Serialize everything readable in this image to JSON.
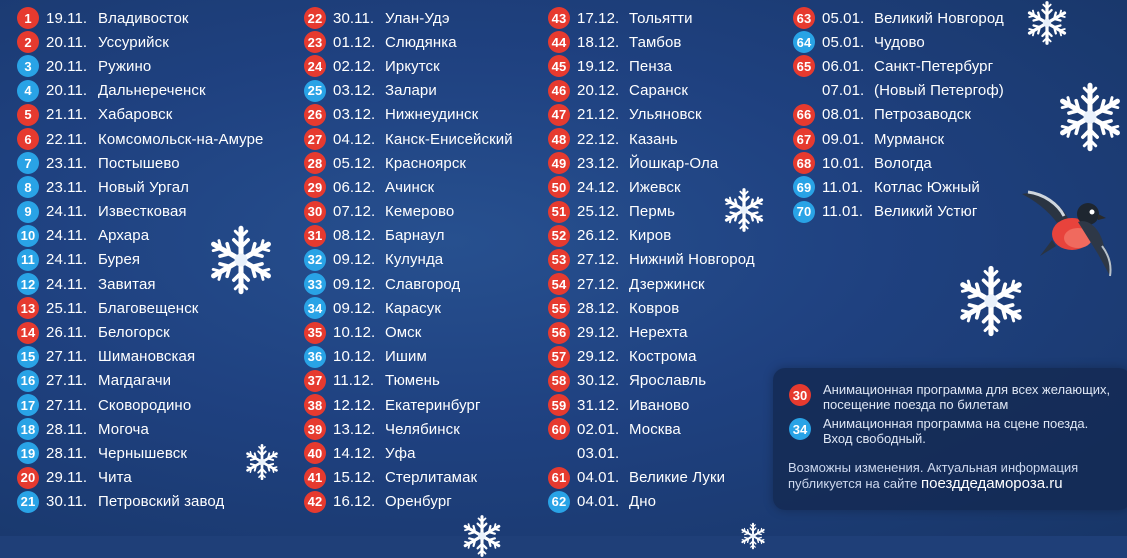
{
  "columns": [
    [
      {
        "n": "1",
        "c": "red",
        "date": "19.11.",
        "city": "Владивосток"
      },
      {
        "n": "2",
        "c": "red",
        "date": "20.11.",
        "city": "Уссурийск"
      },
      {
        "n": "3",
        "c": "blue",
        "date": "20.11.",
        "city": "Ружино"
      },
      {
        "n": "4",
        "c": "blue",
        "date": "20.11.",
        "city": "Дальнереченск"
      },
      {
        "n": "5",
        "c": "red",
        "date": "21.11.",
        "city": "Хабаровск"
      },
      {
        "n": "6",
        "c": "red",
        "date": "22.11.",
        "city": "Комсомольск-на-Амуре"
      },
      {
        "n": "7",
        "c": "blue",
        "date": "23.11.",
        "city": "Постышево"
      },
      {
        "n": "8",
        "c": "blue",
        "date": "23.11.",
        "city": "Новый Ургал"
      },
      {
        "n": "9",
        "c": "blue",
        "date": "24.11.",
        "city": "Известковая"
      },
      {
        "n": "10",
        "c": "blue",
        "date": "24.11.",
        "city": "Архара"
      },
      {
        "n": "11",
        "c": "blue",
        "date": "24.11.",
        "city": "Бурея"
      },
      {
        "n": "12",
        "c": "blue",
        "date": "24.11.",
        "city": "Завитая"
      },
      {
        "n": "13",
        "c": "red",
        "date": "25.11.",
        "city": "Благовещенск"
      },
      {
        "n": "14",
        "c": "red",
        "date": "26.11.",
        "city": "Белогорск"
      },
      {
        "n": "15",
        "c": "blue",
        "date": "27.11.",
        "city": "Шимановская"
      },
      {
        "n": "16",
        "c": "blue",
        "date": "27.11.",
        "city": "Магдагачи"
      },
      {
        "n": "17",
        "c": "blue",
        "date": "27.11.",
        "city": "Сковородино"
      },
      {
        "n": "18",
        "c": "blue",
        "date": "28.11.",
        "city": "Могоча"
      },
      {
        "n": "19",
        "c": "blue",
        "date": "28.11.",
        "city": "Чернышевск"
      },
      {
        "n": "20",
        "c": "red",
        "date": "29.11.",
        "city": "Чита"
      },
      {
        "n": "21",
        "c": "blue",
        "date": "30.11.",
        "city": "Петровский завод"
      }
    ],
    [
      {
        "n": "22",
        "c": "red",
        "date": "30.11.",
        "city": "Улан-Удэ"
      },
      {
        "n": "23",
        "c": "red",
        "date": "01.12.",
        "city": "Слюдянка"
      },
      {
        "n": "24",
        "c": "red",
        "date": "02.12.",
        "city": "Иркутск"
      },
      {
        "n": "25",
        "c": "blue",
        "date": "03.12.",
        "city": "Залари"
      },
      {
        "n": "26",
        "c": "red",
        "date": "03.12.",
        "city": "Нижнеудинск"
      },
      {
        "n": "27",
        "c": "red",
        "date": "04.12.",
        "city": "Канск-Енисейский"
      },
      {
        "n": "28",
        "c": "red",
        "date": "05.12.",
        "city": "Красноярск"
      },
      {
        "n": "29",
        "c": "red",
        "date": "06.12.",
        "city": "Ачинск"
      },
      {
        "n": "30",
        "c": "red",
        "date": "07.12.",
        "city": "Кемерово"
      },
      {
        "n": "31",
        "c": "red",
        "date": "08.12.",
        "city": "Барнаул"
      },
      {
        "n": "32",
        "c": "blue",
        "date": "09.12.",
        "city": "Кулунда"
      },
      {
        "n": "33",
        "c": "blue",
        "date": "09.12.",
        "city": "Славгород"
      },
      {
        "n": "34",
        "c": "blue",
        "date": "09.12.",
        "city": "Карасук"
      },
      {
        "n": "35",
        "c": "red",
        "date": "10.12.",
        "city": "Омск"
      },
      {
        "n": "36",
        "c": "blue",
        "date": "10.12.",
        "city": "Ишим"
      },
      {
        "n": "37",
        "c": "red",
        "date": "11.12.",
        "city": "Тюмень"
      },
      {
        "n": "38",
        "c": "red",
        "date": "12.12.",
        "city": "Екатеринбург"
      },
      {
        "n": "39",
        "c": "red",
        "date": "13.12.",
        "city": "Челябинск"
      },
      {
        "n": "40",
        "c": "red",
        "date": "14.12.",
        "city": "Уфа"
      },
      {
        "n": "41",
        "c": "red",
        "date": "15.12.",
        "city": "Стерлитамак"
      },
      {
        "n": "42",
        "c": "red",
        "date": "16.12.",
        "city": "Оренбург"
      }
    ],
    [
      {
        "n": "43",
        "c": "red",
        "date": "17.12.",
        "city": "Тольятти"
      },
      {
        "n": "44",
        "c": "red",
        "date": "18.12.",
        "city": "Тамбов"
      },
      {
        "n": "45",
        "c": "red",
        "date": "19.12.",
        "city": "Пенза"
      },
      {
        "n": "46",
        "c": "red",
        "date": "20.12.",
        "city": "Саранск"
      },
      {
        "n": "47",
        "c": "red",
        "date": "21.12.",
        "city": "Ульяновск"
      },
      {
        "n": "48",
        "c": "red",
        "date": "22.12.",
        "city": "Казань"
      },
      {
        "n": "49",
        "c": "red",
        "date": "23.12.",
        "city": "Йошкар-Ола"
      },
      {
        "n": "50",
        "c": "red",
        "date": "24.12.",
        "city": "Ижевск"
      },
      {
        "n": "51",
        "c": "red",
        "date": "25.12.",
        "city": "Пермь"
      },
      {
        "n": "52",
        "c": "red",
        "date": "26.12.",
        "city": "Киров"
      },
      {
        "n": "53",
        "c": "red",
        "date": "27.12.",
        "city": "Нижний Новгород"
      },
      {
        "n": "54",
        "c": "red",
        "date": "27.12.",
        "city": "Дзержинск"
      },
      {
        "n": "55",
        "c": "red",
        "date": "28.12.",
        "city": "Ковров"
      },
      {
        "n": "56",
        "c": "red",
        "date": "29.12.",
        "city": "Нерехта"
      },
      {
        "n": "57",
        "c": "red",
        "date": "29.12.",
        "city": "Кострома"
      },
      {
        "n": "58",
        "c": "red",
        "date": "30.12.",
        "city": "Ярославль"
      },
      {
        "n": "59",
        "c": "red",
        "date": "31.12.",
        "city": "Иваново"
      },
      {
        "n": "60",
        "c": "red",
        "date": "02.01.",
        "city": "Москва"
      },
      {
        "n": "",
        "c": "",
        "date": "03.01.",
        "city": ""
      },
      {
        "n": "61",
        "c": "red",
        "date": "04.01.",
        "city": "Великие Луки"
      },
      {
        "n": "62",
        "c": "blue",
        "date": "04.01.",
        "city": "Дно"
      }
    ],
    [
      {
        "n": "63",
        "c": "red",
        "date": "05.01.",
        "city": "Великий Новгород"
      },
      {
        "n": "64",
        "c": "blue",
        "date": "05.01.",
        "city": "Чудово"
      },
      {
        "n": "65",
        "c": "red",
        "date": "06.01.",
        "city": "Санкт-Петербург"
      },
      {
        "n": "",
        "c": "",
        "date": "07.01.",
        "city": "(Новый Петергоф)"
      },
      {
        "n": "66",
        "c": "red",
        "date": "08.01.",
        "city": "Петрозаводск"
      },
      {
        "n": "67",
        "c": "red",
        "date": "09.01.",
        "city": "Мурманск"
      },
      {
        "n": "68",
        "c": "red",
        "date": "10.01.",
        "city": "Вологда"
      },
      {
        "n": "69",
        "c": "blue",
        "date": "11.01.",
        "city": "Котлас Южный"
      },
      {
        "n": "70",
        "c": "blue",
        "date": "11.01.",
        "city": "Великий Устюг"
      }
    ]
  ],
  "legend": {
    "red_badge": "30",
    "red_text": "Анимационная программа для всех желающих, посещение поезда по билетам",
    "blue_badge": "34",
    "blue_text": "Анимационная программа на сцене поезда. Вход свободный.",
    "note_line1": "Возможны изменения. Актуальная информация",
    "note_line2": "публикуется на сайте",
    "site": "поезддедамороза.ru"
  },
  "colors": {
    "red": "#e63a2f",
    "blue": "#29a3e6",
    "background": "#1f3f78"
  },
  "icons": [
    "snowflake-icon",
    "bullfinch-bird-icon"
  ]
}
